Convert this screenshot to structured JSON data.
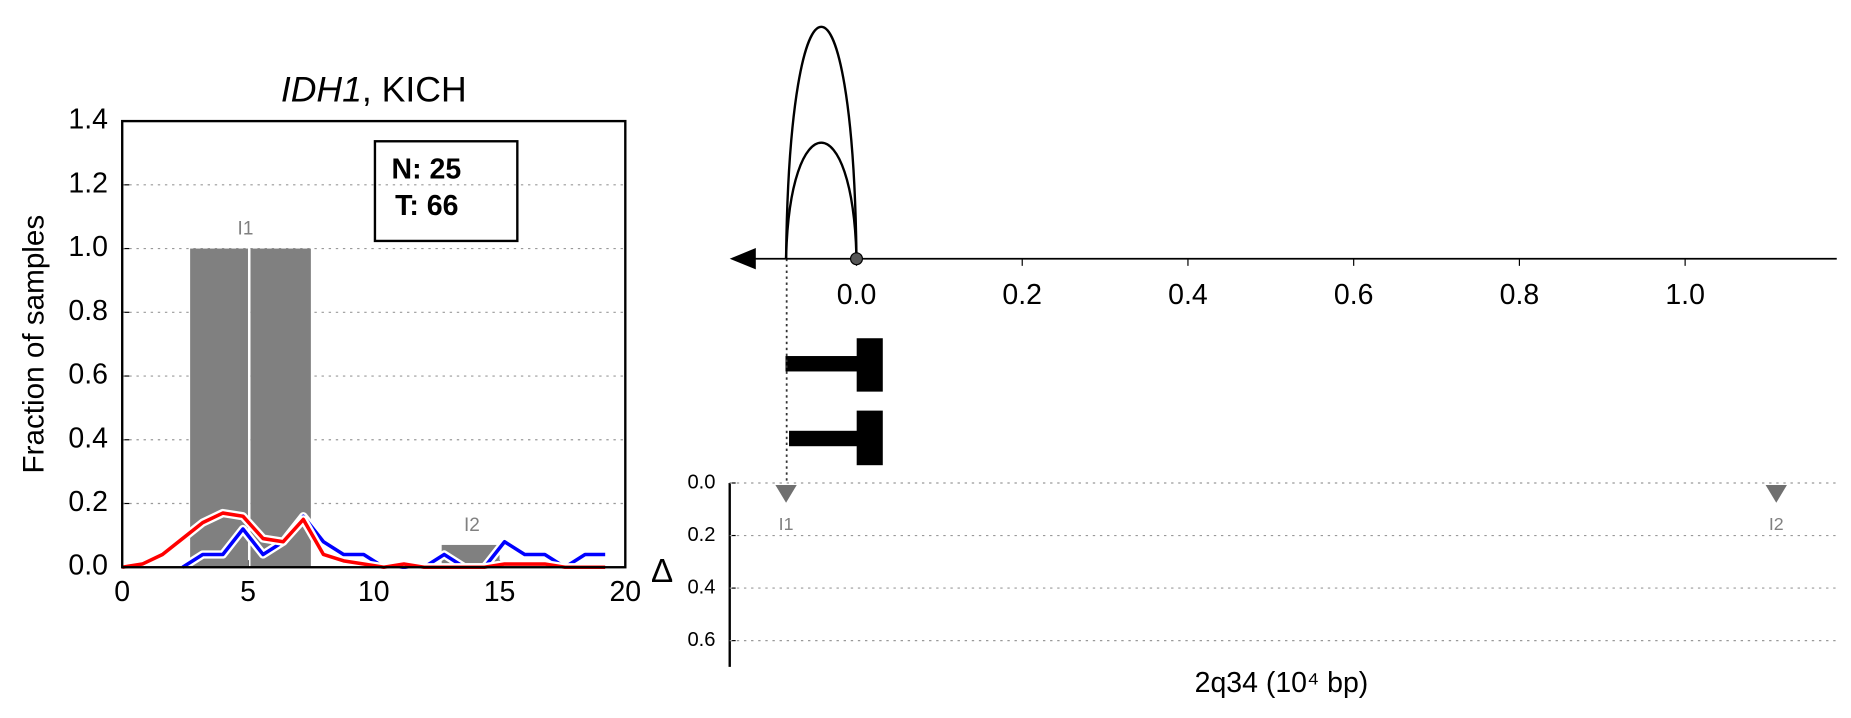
{
  "chart_data": [
    {
      "type": "histogram",
      "title_italic": "IDH1",
      "title": ", KICH",
      "ylabel": "Fraction of samples",
      "xlim": [
        0,
        20
      ],
      "xticks": [
        0,
        5,
        10,
        15,
        20
      ],
      "ylim": [
        0,
        1.4
      ],
      "yticks": [
        {
          "value": 0,
          "label": "0.0"
        },
        0.2,
        0.4,
        0.6,
        0.8,
        {
          "value": 1,
          "label": "1.0"
        },
        1.2,
        1.4
      ],
      "grid": true,
      "annotations": [
        "N: 25",
        "T: 66"
      ],
      "bars": {
        "color": "#808080",
        "left": [
          2.7,
          5.1,
          12.7
        ],
        "right": [
          5.0,
          7.5,
          15.0
        ],
        "values": [
          1.0,
          1.0,
          0.07
        ]
      },
      "peaks": {
        "labels": [
          "I1",
          "I2"
        ],
        "x": [
          4.9,
          13.9
        ]
      },
      "x": [
        0,
        0.8,
        1.6,
        2.4,
        3.2,
        4.0,
        4.8,
        5.6,
        6.4,
        7.2,
        8.0,
        8.8,
        9.6,
        10.4,
        11.2,
        12.0,
        12.8,
        13.6,
        14.4,
        15.2,
        16.0,
        16.8,
        17.6,
        18.4,
        19.2
      ],
      "series": [
        {
          "color": "#0000ff",
          "values": [
            null,
            null,
            null,
            0,
            0.04,
            0.04,
            0.12,
            0.04,
            0.08,
            0.16,
            0.08,
            0.04,
            0.04,
            0,
            0,
            0,
            0.04,
            0,
            0,
            0.08,
            0.04,
            0.04,
            0,
            0.04,
            0.04
          ]
        },
        {
          "color": "#ff0000",
          "values": [
            0,
            0.01,
            0.04,
            0.09,
            0.14,
            0.17,
            0.16,
            0.09,
            0.08,
            0.15,
            0.04,
            0.02,
            0.01,
            0,
            0.01,
            0,
            0,
            0,
            0,
            0.01,
            0.01,
            0.01,
            0,
            0,
            0
          ]
        }
      ]
    },
    {
      "type": "track",
      "xlabel": "2q34 (10⁴ bp)",
      "ylabel": "Δ",
      "xlim": [
        -0.153,
        1.183
      ],
      "xticks": [
        {
          "value": 0,
          "label": "0.0"
        },
        0.2,
        0.4,
        0.6,
        0.8,
        {
          "value": 1,
          "label": "1.0"
        }
      ],
      "ylim": [
        0,
        0.7
      ],
      "yticks": [
        {
          "value": 0,
          "label": "0.0"
        },
        0.2,
        0.4,
        0.6
      ],
      "grid": true,
      "arcs": {
        "start": [
          -0.085,
          -0.085
        ],
        "end": [
          0,
          0
        ]
      },
      "point": 0,
      "markers": {
        "color": "#707070",
        "labels": [
          "I1",
          "I2"
        ],
        "x": [
          -0.085,
          1.11
        ],
        "values": [
          0.03,
          0.03
        ]
      }
    }
  ]
}
